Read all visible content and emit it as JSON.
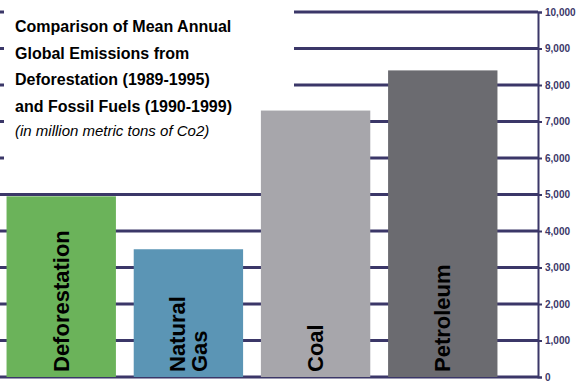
{
  "chart_data": {
    "type": "bar",
    "title": "Comparison of Mean Annual\nGlobal Emissions from\nDeforestation (1989-1995)\nand Fossil Fuels (1990-1999)",
    "subtitle": "(in million metric tons of Co2)",
    "categories": [
      "Deforestation",
      "Natural Gas",
      "Coal",
      "Petroleum"
    ],
    "values": [
      4950,
      3500,
      7300,
      8400
    ],
    "colors": [
      "#6bb35a",
      "#5b95b5",
      "#a7a6ab",
      "#6b6b70"
    ],
    "ylim": [
      0,
      10000
    ],
    "yticks": [
      0,
      {
        "value": 1000,
        "label": "1,000"
      },
      {
        "value": 2000,
        "label": "2,000"
      },
      {
        "value": 3000,
        "label": "3,000"
      },
      {
        "value": 4000,
        "label": "4,000"
      },
      {
        "value": 5000,
        "label": "5,000"
      },
      {
        "value": 6000,
        "label": "6,000"
      },
      {
        "value": 7000,
        "label": "7,000"
      },
      {
        "value": 8000,
        "label": "8,000"
      },
      {
        "value": 9000,
        "label": "9,000"
      },
      {
        "value": 10000,
        "label": "10,000"
      }
    ],
    "grid": true
  }
}
